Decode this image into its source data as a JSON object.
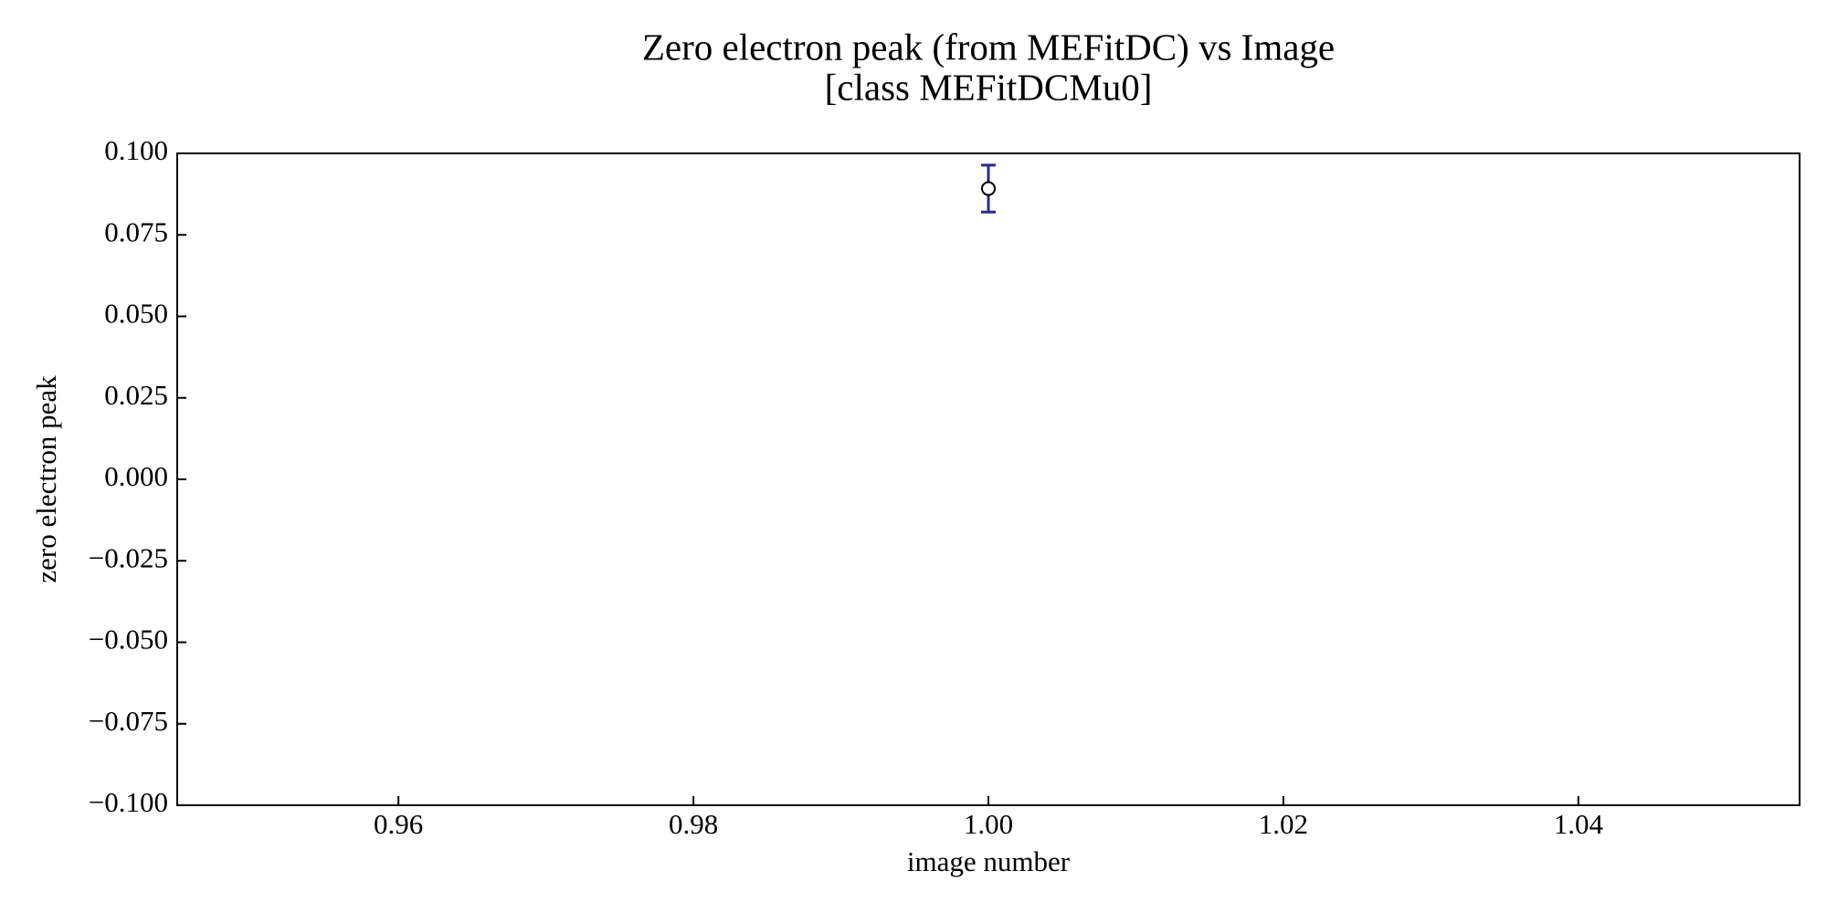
{
  "chart_data": {
    "type": "errorbar",
    "title": "Zero electron peak (from MEFitDC) vs Image",
    "subtitle": "[class MEFitDCMu0]",
    "x_label": "image number",
    "y_label": "zero electron peak",
    "x": [
      1.0
    ],
    "values": [
      0.0892
    ],
    "errors": [
      0.0072
    ],
    "color": "#2e2a8c",
    "marker_face": "#ffffff",
    "marker_edge": "#000000",
    "xlim": [
      0.945,
      1.055
    ],
    "xticks": [
      0.96,
      0.98,
      {
        "value": 1.0,
        "label": "1.00"
      },
      1.02,
      1.04
    ],
    "ylim": [
      -0.1,
      0.1
    ],
    "yticks": [
      {
        "value": -0.1,
        "label": "−0.100"
      },
      {
        "value": -0.075,
        "label": "−0.075"
      },
      {
        "value": -0.05,
        "label": "−0.050"
      },
      {
        "value": -0.025,
        "label": "−0.025"
      },
      {
        "value": 0,
        "label": "0.000"
      },
      {
        "value": 0.025,
        "label": "0.025"
      },
      {
        "value": 0.05,
        "label": "0.050"
      },
      {
        "value": 0.075,
        "label": "0.075"
      },
      {
        "value": 0.1,
        "label": "0.100"
      }
    ],
    "grid": false
  }
}
